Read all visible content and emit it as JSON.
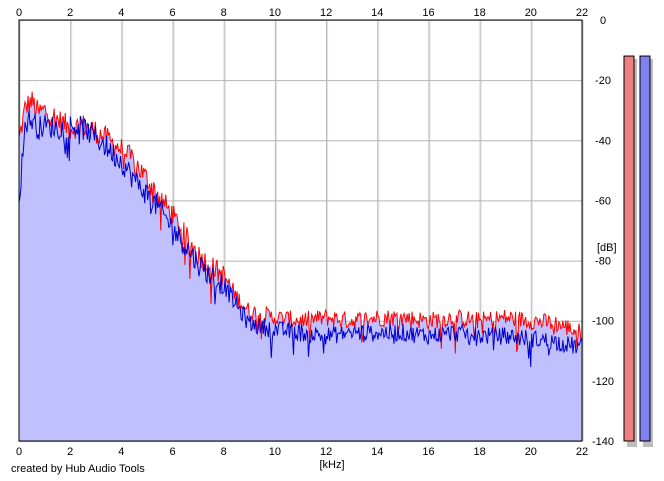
{
  "credit": "created by Hub Audio Tools",
  "chart_data": {
    "type": "line",
    "title": "",
    "xlabel": "[kHz]",
    "ylabel": "[dB]",
    "xlim": [
      0,
      22
    ],
    "ylim": [
      -140,
      0
    ],
    "x_ticks": [
      0,
      2,
      4,
      6,
      8,
      10,
      12,
      14,
      16,
      18,
      20,
      22
    ],
    "y_ticks": [
      0,
      -20,
      -40,
      -60,
      -80,
      -100,
      -120,
      -140
    ],
    "grid": true,
    "legend": "none",
    "series": [
      {
        "color": "#ff0000",
        "x": [
          0,
          0.25,
          0.5,
          0.75,
          1,
          1.5,
          2,
          2.5,
          3,
          3.5,
          4,
          4.5,
          5,
          5.5,
          6,
          6.5,
          7,
          7.5,
          8,
          8.5,
          9,
          9.5,
          10,
          11,
          12,
          13,
          14,
          15,
          16,
          17,
          18,
          19,
          20,
          21,
          22
        ],
        "values": [
          -40,
          -29,
          -27,
          -31,
          -30,
          -33,
          -36,
          -35,
          -37,
          -40,
          -43,
          -47,
          -53,
          -59,
          -65,
          -72,
          -78,
          -82,
          -85,
          -92,
          -97,
          -98,
          -99,
          -100,
          -99,
          -100,
          -99,
          -99,
          -100,
          -99,
          -100,
          -99,
          -100,
          -101,
          -104
        ]
      },
      {
        "color": "#0000cc",
        "x": [
          0,
          0.25,
          0.5,
          0.75,
          1,
          1.5,
          2,
          2.5,
          3,
          3.5,
          4,
          4.5,
          5,
          5.5,
          6,
          6.5,
          7,
          7.5,
          8,
          8.5,
          9,
          9.5,
          10,
          11,
          12,
          13,
          14,
          15,
          16,
          17,
          18,
          19,
          20,
          21,
          22
        ],
        "values": [
          -60,
          -34,
          -33,
          -36,
          -35,
          -36,
          -35,
          -36,
          -39,
          -43,
          -47,
          -53,
          -58,
          -63,
          -69,
          -75,
          -81,
          -85,
          -88,
          -95,
          -101,
          -102,
          -103,
          -104,
          -105,
          -104,
          -104,
          -104,
          -105,
          -104,
          -105,
          -105,
          -106,
          -107,
          -109
        ]
      }
    ],
    "level_meters": [
      {
        "color": "#f08080",
        "level_db": -6
      },
      {
        "color": "#8080f0",
        "level_db": -6
      }
    ]
  }
}
